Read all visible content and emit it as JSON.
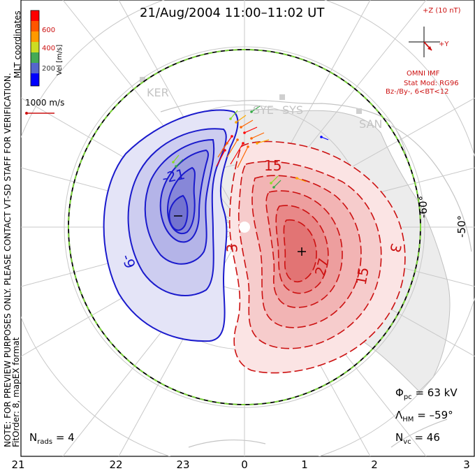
{
  "title": "21/Aug/2004  11:00–11:02 UT",
  "colorbar": {
    "label": "Vel [m/s]",
    "ticks": [
      "600",
      "400",
      "200"
    ],
    "colors": [
      "#ff0000",
      "#ff6600",
      "#ffaa00",
      "#88dd22",
      "#33aa44",
      "#6666cc",
      "#0000ff"
    ]
  },
  "coords_label": "MLT coordinates",
  "reference_vector_label": "1000 m/s",
  "imf": {
    "z_label": "+Z (10 nT)",
    "y_label": "+Y",
    "source": "OMNI IMF",
    "model_lines": [
      "Stat Mod: RG96",
      "Bz-/By-, 6<BT<12"
    ]
  },
  "note": "NOTE: FOR PREVIEW PURPOSES ONLY. PLEASE CONTACT VT-SD STAFF FOR VERIFICATION.",
  "fit_order": "FitOrder: 8, mapEX format",
  "stations": [
    "KER",
    "SYE",
    "SYS",
    "SAN"
  ],
  "latitude_labels": [
    "-60°",
    "-50°"
  ],
  "contour_labels_neg": [
    "-21",
    "-9",
    "–"
  ],
  "contour_labels_pos": [
    "15",
    "27",
    "15",
    "3",
    "3"
  ],
  "stats": {
    "phi_pc": "Φ",
    "phi_sub": "pc",
    "phi_val": "= 63 kV",
    "lambda": "Λ",
    "lambda_sub": "HM",
    "lambda_val": "= –59°",
    "nvc": "N",
    "nvc_sub": "vc",
    "nvc_val": "= 46",
    "nrads": "N",
    "nrads_sub": "rads",
    "nrads_val": "= 4"
  },
  "mlt_labels": [
    "21",
    "22",
    "23",
    "0",
    "1",
    "2",
    "3"
  ],
  "colors": {
    "negative": "#1a1acc",
    "negative_fill": "#7a7ae0",
    "positive": "#cc1111",
    "positive_fill": "#f06666",
    "grid": "#c8c8c8",
    "land": "#e6e6e6",
    "coast": "#bdbdbd"
  }
}
